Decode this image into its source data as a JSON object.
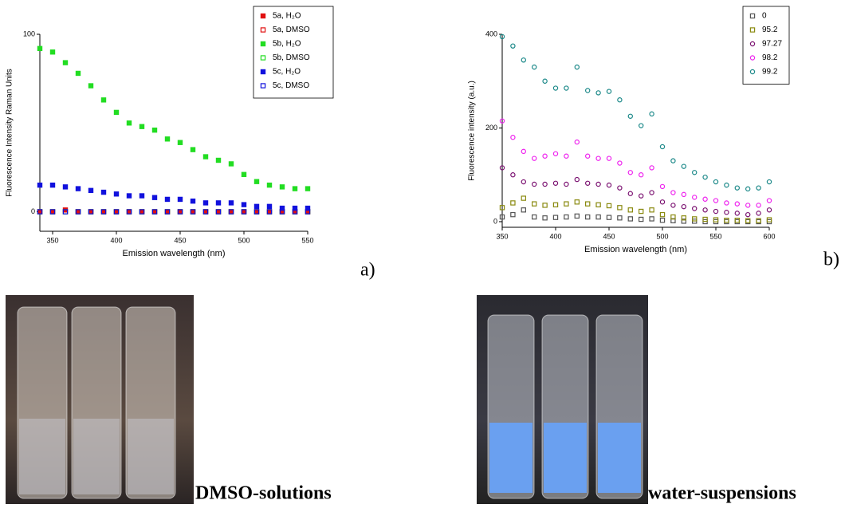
{
  "chart_data": [
    {
      "type": "scatter",
      "x_label": "Emission wavelength (nm)",
      "y_label": "Fluorescence Intensity Raman Units",
      "x": [
        340,
        350,
        360,
        370,
        380,
        390,
        400,
        410,
        420,
        430,
        440,
        450,
        460,
        470,
        480,
        490,
        500,
        510,
        520,
        530,
        540,
        550
      ],
      "xlim": [
        340,
        550
      ],
      "ylim": [
        -11,
        100
      ],
      "xticks": [
        350,
        400,
        450,
        500,
        550
      ],
      "yticks": [
        0,
        100
      ],
      "grid": false,
      "legend": "top-right",
      "series": [
        {
          "name": "5a, H₂O",
          "color": "#e01010",
          "marker": "square",
          "filled": true,
          "values": [
            0,
            0,
            1,
            0,
            0,
            0,
            0,
            0,
            0,
            0,
            0,
            0,
            0,
            0,
            0,
            0,
            0,
            0,
            0,
            0,
            0,
            0
          ]
        },
        {
          "name": "5a, DMSO",
          "color": "#e01010",
          "marker": "square",
          "filled": false,
          "values": [
            0,
            0,
            0,
            0,
            0,
            0,
            0,
            0,
            0,
            0,
            0,
            0,
            0,
            0,
            0,
            0,
            0,
            0,
            0,
            0,
            0,
            0
          ]
        },
        {
          "name": "5b, H₂O",
          "color": "#22dd22",
          "marker": "square",
          "filled": true,
          "values": [
            92,
            90,
            84,
            78,
            71,
            63,
            56,
            50,
            48,
            46,
            41,
            39,
            35,
            31,
            29,
            27,
            21,
            17,
            15,
            14,
            13,
            13
          ]
        },
        {
          "name": "5b, DMSO",
          "color": "#22dd22",
          "marker": "square",
          "filled": false,
          "values": [
            0,
            0,
            0,
            0,
            0,
            0,
            0,
            0,
            0,
            0,
            0,
            0,
            0,
            0,
            0,
            0,
            0,
            0,
            0,
            0,
            0,
            0
          ]
        },
        {
          "name": "5c, H₂O",
          "color": "#1111dd",
          "marker": "square",
          "filled": true,
          "values": [
            15,
            15,
            14,
            13,
            12,
            11,
            10,
            9,
            9,
            8,
            7,
            7,
            6,
            5,
            5,
            5,
            4,
            3,
            3,
            2,
            2,
            2
          ]
        },
        {
          "name": "5c, DMSO",
          "color": "#1111dd",
          "marker": "square",
          "filled": false,
          "values": [
            0,
            0,
            0,
            0,
            0,
            0,
            0,
            0,
            0,
            0,
            0,
            0,
            0,
            0,
            0,
            0,
            0,
            0,
            0,
            0,
            0,
            0
          ]
        }
      ]
    },
    {
      "type": "scatter",
      "x_label": "Emission wavelength (nm)",
      "y_label": "Fluorescence intensity (a.u.)",
      "x": [
        350,
        360,
        370,
        380,
        390,
        400,
        410,
        420,
        430,
        440,
        450,
        460,
        470,
        480,
        490,
        500,
        510,
        520,
        530,
        540,
        550,
        560,
        570,
        580,
        590,
        600
      ],
      "xlim": [
        350,
        600
      ],
      "ylim": [
        -12,
        400
      ],
      "xticks": [
        350,
        400,
        450,
        500,
        550,
        600
      ],
      "yticks": [
        0,
        200,
        400
      ],
      "grid": false,
      "legend": "top-right",
      "series": [
        {
          "name": "0",
          "color": "#555555",
          "marker": "square",
          "filled": false,
          "values": [
            10,
            15,
            25,
            10,
            8,
            9,
            10,
            12,
            10,
            10,
            9,
            8,
            6,
            5,
            6,
            3,
            2,
            1,
            1,
            0,
            0,
            0,
            0,
            0,
            0,
            0
          ]
        },
        {
          "name": "95.2",
          "color": "#8a8a10",
          "marker": "square",
          "filled": false,
          "values": [
            30,
            40,
            50,
            38,
            35,
            36,
            38,
            42,
            38,
            36,
            34,
            30,
            25,
            22,
            25,
            15,
            10,
            8,
            6,
            5,
            4,
            3,
            3,
            2,
            2,
            4
          ]
        },
        {
          "name": "97.27",
          "color": "#7a1070",
          "marker": "circle",
          "filled": false,
          "values": [
            115,
            100,
            85,
            80,
            80,
            82,
            80,
            90,
            82,
            80,
            78,
            72,
            60,
            55,
            62,
            42,
            35,
            32,
            28,
            25,
            22,
            20,
            18,
            15,
            18,
            25
          ]
        },
        {
          "name": "98.2",
          "color": "#ee22ee",
          "marker": "circle",
          "filled": false,
          "values": [
            215,
            180,
            150,
            135,
            140,
            145,
            140,
            170,
            140,
            135,
            135,
            125,
            105,
            100,
            115,
            75,
            62,
            58,
            52,
            48,
            45,
            40,
            38,
            35,
            35,
            45
          ]
        },
        {
          "name": "99.2",
          "color": "#1a8888",
          "marker": "circle",
          "filled": false,
          "values": [
            395,
            375,
            345,
            330,
            300,
            285,
            285,
            330,
            280,
            275,
            278,
            260,
            225,
            205,
            230,
            160,
            130,
            118,
            105,
            95,
            85,
            78,
            72,
            70,
            72,
            85
          ]
        }
      ]
    }
  ],
  "panel_labels": [
    "a)",
    "b)"
  ],
  "photos": [
    {
      "caption": "DMSO-solutions"
    },
    {
      "caption": "water-suspensions"
    }
  ]
}
